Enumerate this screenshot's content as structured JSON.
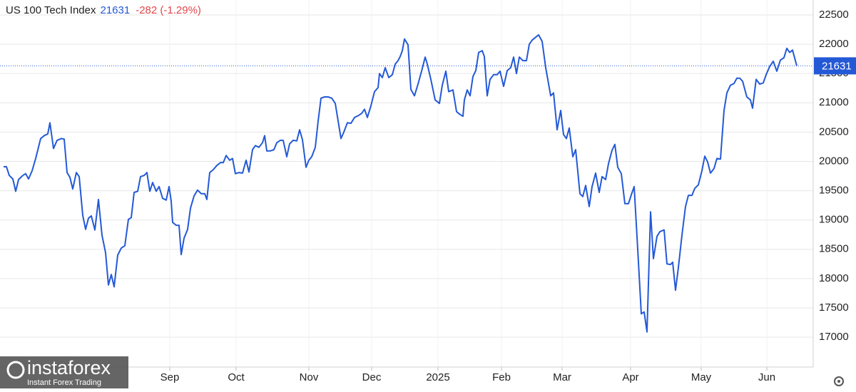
{
  "chart_data": {
    "type": "line",
    "title": "US 100 Tech Index",
    "last_price": 21631,
    "change_label": "-282 (-1.29%)",
    "watermark": "instaforex",
    "watermark_tagline": "Instant Forex Trading",
    "xlim": [
      0,
      1135
    ],
    "ylim": [
      16490,
      22755
    ],
    "xticks": [
      {
        "value": 233,
        "label": "Sep"
      },
      {
        "value": 326,
        "label": "Oct"
      },
      {
        "value": 428,
        "label": "Nov"
      },
      {
        "value": 516,
        "label": "Dec"
      },
      {
        "value": 609,
        "label": "2025"
      },
      {
        "value": 698,
        "label": "Feb"
      },
      {
        "value": 783,
        "label": "Mar"
      },
      {
        "value": 879,
        "label": "Apr"
      },
      {
        "value": 978,
        "label": "May"
      },
      {
        "value": 1070,
        "label": "Jun"
      }
    ],
    "yticks": [
      17000,
      17500,
      18000,
      18500,
      19000,
      19500,
      20000,
      20500,
      21000,
      21500,
      22000,
      22500
    ],
    "grid": true,
    "x": [
      0,
      4,
      8,
      13,
      17,
      21,
      27,
      31,
      35,
      40,
      45,
      52,
      57,
      62,
      65,
      70,
      75,
      81,
      85,
      89,
      93,
      97,
      102,
      106,
      111,
      115,
      119,
      123,
      128,
      133,
      138,
      143,
      147,
      151,
      155,
      160,
      165,
      170,
      175,
      179,
      183,
      188,
      192,
      197,
      201,
      205,
      209,
      214,
      218,
      223,
      228,
      232,
      235,
      237,
      242,
      246,
      249,
      253,
      258,
      262,
      267,
      272,
      277,
      282,
      285,
      289,
      294,
      299,
      304,
      308,
      312,
      317,
      321,
      325,
      330,
      335,
      340,
      344,
      349,
      353,
      358,
      363,
      366,
      369,
      374,
      379,
      383,
      388,
      392,
      397,
      401,
      406,
      411,
      415,
      419,
      424,
      428,
      432,
      437,
      441,
      445,
      450,
      455,
      460,
      465,
      473,
      477,
      482,
      487,
      492,
      497,
      502,
      506,
      510,
      515,
      520,
      525,
      527,
      531,
      535,
      540,
      545,
      549,
      553,
      556,
      559,
      562,
      567,
      571,
      576,
      581,
      586,
      591,
      594,
      599,
      605,
      611,
      615,
      620,
      624,
      630,
      635,
      640,
      644,
      646,
      650,
      654,
      658,
      662,
      666,
      671,
      674,
      678,
      682,
      687,
      692,
      696,
      701,
      706,
      711,
      715,
      719,
      723,
      728,
      733,
      737,
      741,
      746,
      750,
      755,
      760,
      767,
      771,
      776,
      781,
      785,
      789,
      793,
      798,
      802,
      808,
      812,
      816,
      821,
      825,
      830,
      835,
      839,
      844,
      848,
      853,
      857,
      861,
      866,
      871,
      876,
      880,
      884,
      889,
      894,
      898,
      902,
      907,
      911,
      916,
      920,
      926,
      930,
      935,
      938,
      942,
      946,
      951,
      956,
      960,
      965,
      969,
      974,
      979,
      983,
      987,
      991,
      996,
      1000,
      1005,
      1010,
      1014,
      1019,
      1024,
      1028,
      1032,
      1036,
      1042,
      1047,
      1050,
      1055,
      1060,
      1065,
      1069,
      1074,
      1079,
      1084,
      1089,
      1094,
      1098,
      1102,
      1106,
      1112
    ],
    "series": [
      {
        "name": "US 100 Tech Index",
        "color": "#2459d6",
        "values": [
          19910,
          19910,
          19760,
          19700,
          19490,
          19690,
          19760,
          19790,
          19700,
          19840,
          20050,
          20390,
          20440,
          20470,
          20660,
          20220,
          20360,
          20390,
          20380,
          19810,
          19730,
          19530,
          19810,
          19740,
          19080,
          18840,
          19030,
          19070,
          18830,
          19350,
          18740,
          18440,
          17890,
          18070,
          17860,
          18400,
          18520,
          18560,
          19010,
          19040,
          19470,
          19490,
          19740,
          19760,
          19810,
          19490,
          19640,
          19490,
          19570,
          19370,
          19340,
          19570,
          19320,
          18960,
          18910,
          18910,
          18410,
          18690,
          18840,
          19200,
          19410,
          19510,
          19450,
          19450,
          19350,
          19810,
          19860,
          19930,
          19980,
          19980,
          20100,
          20020,
          20050,
          19790,
          19810,
          19800,
          20020,
          19820,
          20200,
          20270,
          20240,
          20320,
          20440,
          20180,
          20180,
          20200,
          20320,
          20360,
          20360,
          20080,
          20300,
          20360,
          20350,
          20540,
          20370,
          19900,
          20020,
          20080,
          20240,
          20690,
          21080,
          21100,
          21100,
          21080,
          20990,
          20390,
          20500,
          20660,
          20650,
          20750,
          20780,
          20820,
          20890,
          20750,
          20950,
          21190,
          21260,
          21500,
          21430,
          21600,
          21430,
          21480,
          21660,
          21720,
          21790,
          21890,
          22090,
          21990,
          21230,
          21120,
          21320,
          21540,
          21780,
          21660,
          21400,
          21050,
          20990,
          21300,
          21540,
          21190,
          21220,
          20850,
          20800,
          20770,
          21050,
          21220,
          21120,
          21450,
          21550,
          21860,
          21890,
          21790,
          21120,
          21400,
          21480,
          21480,
          21540,
          21280,
          21550,
          21600,
          21780,
          21500,
          21780,
          21720,
          21720,
          22000,
          22070,
          22120,
          22160,
          22050,
          21600,
          21120,
          21170,
          20540,
          20870,
          20460,
          20390,
          20570,
          20080,
          20200,
          19450,
          19400,
          19590,
          19230,
          19570,
          19800,
          19470,
          19740,
          19690,
          19960,
          20190,
          20290,
          19900,
          19790,
          19280,
          19280,
          19430,
          19570,
          18500,
          17400,
          17430,
          17090,
          19140,
          18340,
          18720,
          18800,
          18830,
          18250,
          18240,
          18280,
          17800,
          18190,
          18740,
          19230,
          19420,
          19420,
          19540,
          19600,
          19840,
          20090,
          19990,
          19800,
          19880,
          20050,
          20040,
          20870,
          21170,
          21300,
          21330,
          21420,
          21420,
          21370,
          21100,
          21050,
          20910,
          21400,
          21320,
          21340,
          21480,
          21620,
          21710,
          21540,
          21730,
          21770,
          21930,
          21860,
          21900,
          21631
        ]
      }
    ]
  }
}
